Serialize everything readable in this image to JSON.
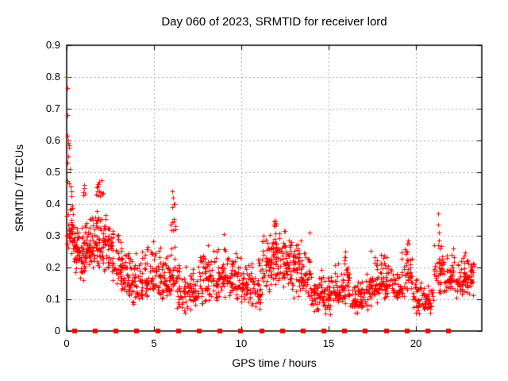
{
  "chart_data": {
    "type": "scatter",
    "title": "Day 060 of 2023, SRMTID for receiver lord",
    "xlabel": "GPS time / hours",
    "ylabel": "SRMTID / TECUs",
    "xlim": [
      0,
      23.77
    ],
    "ylim": [
      0,
      0.9
    ],
    "x_tick_labels": [
      "0",
      "5",
      "10",
      "15",
      "20"
    ],
    "y_tick_labels": [
      "0",
      "0.1",
      "0.2",
      "0.3",
      "0.4",
      "0.5",
      "0.6",
      "0.7",
      "0.8",
      "0.9"
    ],
    "grid": {
      "show": true,
      "style": "dashed",
      "at_x": [
        5,
        10,
        15,
        20
      ],
      "at_y": [
        0.1,
        0.2,
        0.3,
        0.4,
        0.5,
        0.6,
        0.7,
        0.8
      ]
    },
    "legend": "none",
    "colors": {
      "marker": "#ff0000",
      "grid": "#a9a9a9",
      "axis": "#000000",
      "background": "#ffffff",
      "text": "#000000"
    },
    "series": [
      {
        "name": "SRMTID values",
        "marker": "plus",
        "marker_size_px": 7,
        "outlier_points": [
          [
            0.02,
            0.8
          ],
          [
            0.03,
            0.765
          ],
          [
            0.05,
            0.68
          ],
          [
            0.06,
            0.615
          ],
          [
            0.08,
            0.6
          ],
          [
            0.1,
            0.592
          ],
          [
            0.12,
            0.585
          ],
          [
            0.14,
            0.578
          ],
          [
            0.11,
            0.55
          ],
          [
            0.05,
            0.53
          ],
          [
            0.18,
            0.51
          ],
          [
            0.03,
            0.472
          ],
          [
            0.13,
            0.465
          ],
          [
            0.22,
            0.455
          ],
          [
            0.28,
            0.44
          ],
          [
            0.25,
            0.425
          ],
          [
            1.85,
            0.47
          ],
          [
            2.0,
            0.475
          ],
          [
            6.05,
            0.44
          ],
          [
            6.08,
            0.42
          ],
          [
            6.12,
            0.4
          ],
          [
            9.0,
            0.305
          ],
          [
            11.85,
            0.345
          ],
          [
            11.9,
            0.33
          ],
          [
            12.0,
            0.335
          ],
          [
            12.45,
            0.315
          ],
          [
            13.9,
            0.31
          ],
          [
            19.55,
            0.285
          ],
          [
            19.6,
            0.275
          ],
          [
            21.25,
            0.37
          ],
          [
            21.28,
            0.335
          ],
          [
            21.3,
            0.31
          ],
          [
            21.33,
            0.285
          ],
          [
            21.35,
            0.26
          ]
        ],
        "density_bands_x0_x1_n_ylo_yhi_ymode": [
          [
            0.0,
            0.35,
            40,
            0.22,
            0.41,
            0.32
          ],
          [
            0.35,
            0.75,
            45,
            0.17,
            0.37,
            0.26
          ],
          [
            0.75,
            1.1,
            40,
            0.16,
            0.35,
            0.24
          ],
          [
            0.9,
            1.1,
            6,
            0.42,
            0.47,
            0.45
          ],
          [
            1.1,
            1.6,
            50,
            0.18,
            0.38,
            0.27
          ],
          [
            1.6,
            2.1,
            50,
            0.18,
            0.4,
            0.28
          ],
          [
            1.6,
            2.1,
            12,
            0.41,
            0.48,
            0.44
          ],
          [
            2.1,
            2.65,
            50,
            0.15,
            0.38,
            0.27
          ],
          [
            2.65,
            3.2,
            45,
            0.12,
            0.33,
            0.21
          ],
          [
            3.2,
            3.7,
            40,
            0.1,
            0.29,
            0.17
          ],
          [
            3.7,
            4.3,
            45,
            0.08,
            0.25,
            0.15
          ],
          [
            4.3,
            4.9,
            45,
            0.09,
            0.28,
            0.17
          ],
          [
            4.9,
            5.5,
            45,
            0.08,
            0.3,
            0.17
          ],
          [
            5.5,
            5.9,
            35,
            0.1,
            0.25,
            0.15
          ],
          [
            5.9,
            6.3,
            30,
            0.12,
            0.3,
            0.18
          ],
          [
            5.95,
            6.25,
            10,
            0.3,
            0.44,
            0.35
          ],
          [
            6.3,
            6.9,
            40,
            0.04,
            0.22,
            0.13
          ],
          [
            6.9,
            7.5,
            45,
            0.05,
            0.22,
            0.13
          ],
          [
            7.5,
            8.1,
            45,
            0.08,
            0.28,
            0.15
          ],
          [
            8.1,
            8.7,
            45,
            0.08,
            0.27,
            0.16
          ],
          [
            8.7,
            9.3,
            45,
            0.1,
            0.3,
            0.18
          ],
          [
            9.3,
            9.9,
            45,
            0.09,
            0.26,
            0.16
          ],
          [
            9.9,
            10.5,
            45,
            0.08,
            0.24,
            0.14
          ],
          [
            10.5,
            11.1,
            45,
            0.06,
            0.24,
            0.13
          ],
          [
            11.1,
            11.7,
            50,
            0.1,
            0.32,
            0.2
          ],
          [
            11.7,
            12.2,
            50,
            0.12,
            0.35,
            0.24
          ],
          [
            12.2,
            12.8,
            50,
            0.12,
            0.32,
            0.22
          ],
          [
            12.8,
            13.4,
            50,
            0.1,
            0.3,
            0.2
          ],
          [
            13.4,
            14.0,
            45,
            0.09,
            0.28,
            0.17
          ],
          [
            14.0,
            14.6,
            45,
            0.06,
            0.2,
            0.12
          ],
          [
            14.6,
            15.2,
            45,
            0.05,
            0.18,
            0.11
          ],
          [
            15.2,
            15.8,
            45,
            0.07,
            0.22,
            0.13
          ],
          [
            15.8,
            16.2,
            35,
            0.08,
            0.27,
            0.15
          ],
          [
            16.2,
            16.8,
            40,
            0.05,
            0.17,
            0.1
          ],
          [
            16.8,
            17.4,
            40,
            0.06,
            0.2,
            0.11
          ],
          [
            17.4,
            18.0,
            45,
            0.08,
            0.27,
            0.15
          ],
          [
            18.0,
            18.6,
            45,
            0.08,
            0.26,
            0.15
          ],
          [
            18.6,
            19.2,
            40,
            0.08,
            0.22,
            0.13
          ],
          [
            19.2,
            19.8,
            40,
            0.1,
            0.29,
            0.17
          ],
          [
            19.8,
            20.4,
            40,
            0.05,
            0.18,
            0.11
          ],
          [
            20.4,
            21.0,
            40,
            0.04,
            0.16,
            0.1
          ],
          [
            21.0,
            21.6,
            40,
            0.1,
            0.3,
            0.18
          ],
          [
            21.6,
            22.2,
            45,
            0.1,
            0.28,
            0.17
          ],
          [
            22.2,
            22.8,
            45,
            0.1,
            0.26,
            0.16
          ],
          [
            22.8,
            23.3,
            40,
            0.1,
            0.25,
            0.17
          ]
        ]
      },
      {
        "name": "zero-level square markers",
        "marker": "filled-square",
        "marker_size_px": 6,
        "y": 0,
        "x": [
          0.45,
          1.64,
          2.83,
          4.02,
          5.21,
          6.4,
          7.59,
          8.78,
          9.97,
          11.16,
          12.35,
          13.54,
          14.73,
          15.92,
          17.11,
          18.3,
          19.49,
          20.68,
          21.87
        ]
      }
    ]
  }
}
